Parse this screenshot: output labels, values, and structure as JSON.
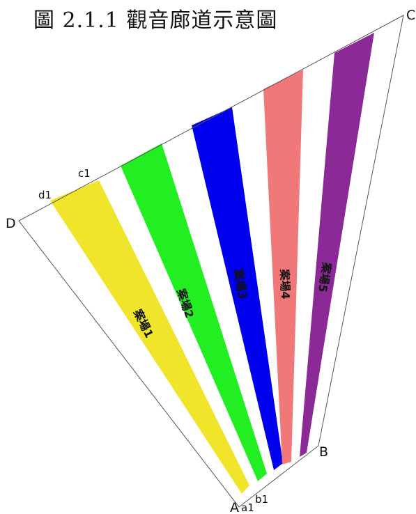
{
  "title": "圖 2.1.1 觀音廊道示意圖",
  "vertices": {
    "A": "A",
    "B": "B",
    "C": "C",
    "D": "D"
  },
  "points": {
    "a1": "a1",
    "b1": "b1",
    "c1": "c1",
    "d1": "d1"
  },
  "colors": {
    "outline": "#555555"
  },
  "bands": [
    {
      "label": "案場1",
      "color": "#f0e52a"
    },
    {
      "label": "案場2",
      "color": "#22ef22"
    },
    {
      "label": "案場3",
      "color": "#0000ee"
    },
    {
      "label": "案場4",
      "color": "#f07878"
    },
    {
      "label": "案場5",
      "color": "#8b2a96"
    }
  ]
}
